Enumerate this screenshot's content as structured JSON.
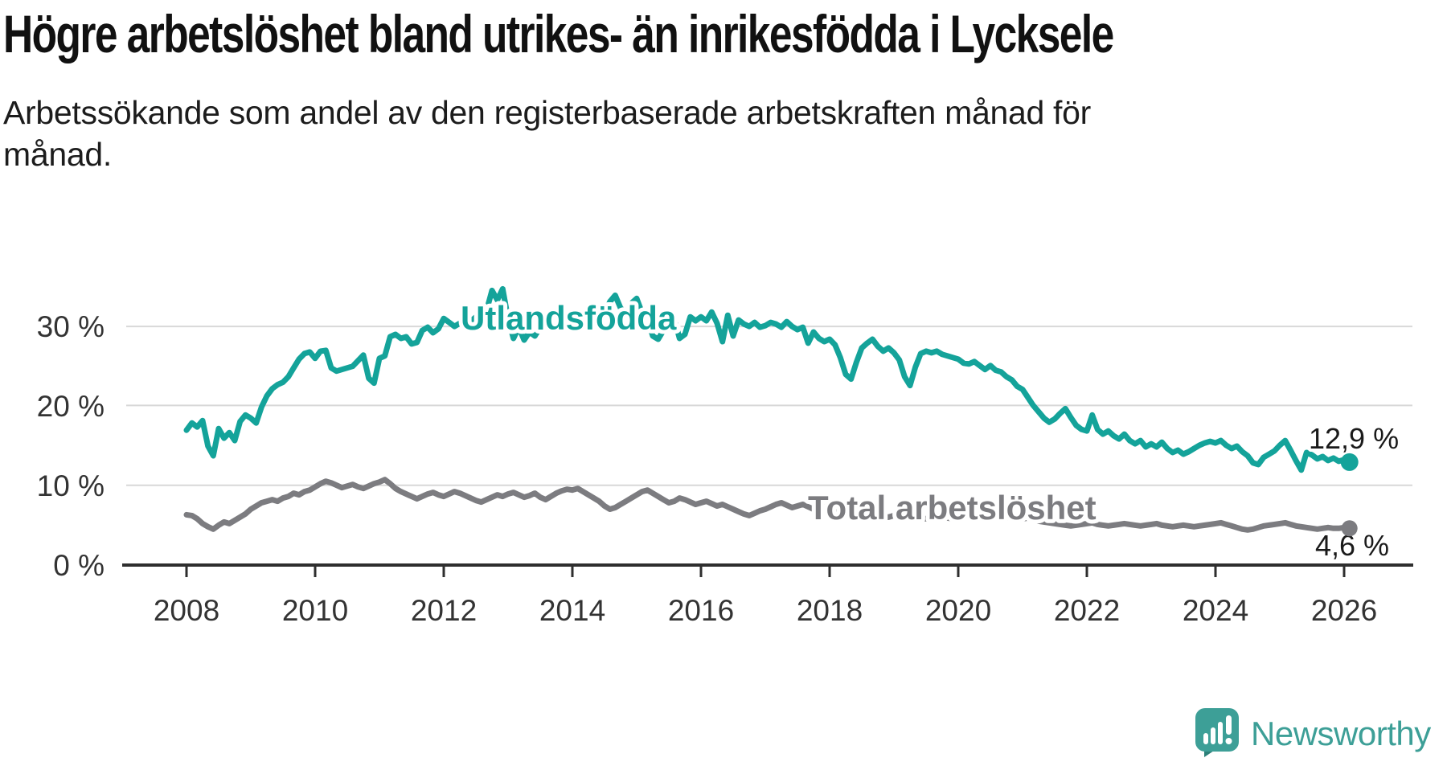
{
  "header": {
    "title": "Högre arbetslöshet bland utrikes- än inrikesfödda i Lycksele",
    "subtitle_line1": "Arbetssökande som andel av den registerbaserade arbetskraften månad för",
    "subtitle_line2": "månad."
  },
  "logo": {
    "name": "Newsworthy",
    "color": "#3d9f97",
    "icon": "speech-bubble-bar-chart"
  },
  "colors": {
    "accent_teal": "#14a39a",
    "gray": "#7c7c80",
    "grid": "#d8d8d8",
    "axis": "#2e2e2e",
    "text": "#1a1a1a"
  },
  "chart_data": {
    "type": "line",
    "title": "Högre arbetslöshet bland utrikes- än inrikesfödda i Lycksele",
    "subtitle": "Arbetssökande som andel av den registerbaserade arbetskraften månad för månad.",
    "x_unit": "month",
    "x_start": "2008-01",
    "x_end": "2026-02",
    "x_tick_labels": [
      "2008",
      "2010",
      "2012",
      "2014",
      "2016",
      "2018",
      "2020",
      "2022",
      "2024",
      "2026"
    ],
    "y_tick_labels": [
      "0 %",
      "10 %",
      "20 %",
      "30 %"
    ],
    "ylim": [
      0,
      36
    ],
    "grid": "horizontal",
    "legend": "inline-labels",
    "series": [
      {
        "name": "Utlandsfödda",
        "color": "#14a39a",
        "end_label": "12,9 %",
        "end_value": 12.9,
        "values": [
          16.9,
          17.8,
          17.3,
          18.1,
          14.9,
          13.7,
          17.1,
          15.9,
          16.6,
          15.6,
          18.0,
          18.8,
          18.4,
          17.8,
          19.8,
          21.2,
          22.1,
          22.6,
          22.9,
          23.6,
          24.7,
          25.8,
          26.5,
          26.7,
          25.9,
          26.8,
          26.9,
          24.7,
          24.3,
          24.5,
          24.7,
          24.9,
          25.6,
          26.3,
          23.4,
          22.8,
          25.9,
          26.2,
          28.6,
          28.9,
          28.4,
          28.6,
          27.7,
          27.9,
          29.4,
          29.8,
          29.1,
          29.6,
          30.9,
          30.4,
          29.9,
          30.3,
          30.0,
          30.5,
          31.1,
          30.4,
          31.9,
          34.4,
          33.2,
          34.6,
          30.9,
          28.4,
          29.8,
          28.2,
          29.2,
          28.7,
          29.8,
          30.4,
          29.8,
          30.2,
          29.6,
          30.1,
          30.4,
          30.9,
          31.3,
          30.5,
          31.1,
          30.7,
          31.5,
          33.0,
          33.8,
          32.2,
          31.6,
          32.8,
          33.4,
          31.6,
          30.9,
          28.7,
          28.3,
          29.4,
          30.5,
          30.9,
          28.4,
          28.9,
          31.1,
          30.6,
          31.1,
          30.6,
          31.7,
          30.3,
          28.0,
          31.3,
          28.7,
          30.7,
          30.2,
          29.9,
          30.4,
          29.8,
          30.0,
          30.4,
          30.2,
          29.8,
          30.5,
          29.9,
          29.5,
          29.8,
          27.8,
          29.2,
          28.4,
          28.0,
          28.3,
          27.6,
          26.0,
          23.9,
          23.3,
          25.4,
          27.2,
          27.8,
          28.3,
          27.4,
          26.8,
          27.2,
          26.6,
          25.7,
          23.6,
          22.5,
          24.8,
          26.5,
          26.8,
          26.6,
          26.8,
          26.4,
          26.2,
          26.0,
          25.8,
          25.3,
          25.2,
          25.5,
          25.0,
          24.5,
          25.0,
          24.4,
          24.2,
          23.6,
          23.2,
          22.4,
          22.0,
          21.0,
          20.0,
          19.2,
          18.4,
          17.9,
          18.3,
          19.0,
          19.6,
          18.5,
          17.5,
          17.0,
          16.8,
          18.8,
          17.0,
          16.4,
          16.8,
          16.2,
          15.8,
          16.4,
          15.6,
          15.2,
          15.6,
          14.8,
          15.2,
          14.8,
          15.4,
          14.6,
          14.1,
          14.4,
          13.9,
          14.2,
          14.6,
          15.0,
          15.3,
          15.5,
          15.3,
          15.6,
          15.0,
          14.6,
          14.9,
          14.2,
          13.7,
          12.8,
          12.6,
          13.5,
          13.9,
          14.3,
          15.0,
          15.6,
          14.4,
          13.1,
          11.9,
          14.1,
          13.8,
          13.3,
          13.6,
          13.1,
          13.4,
          13.0,
          13.2,
          12.9
        ]
      },
      {
        "name": "Total arbetslöshet",
        "color": "#7c7c80",
        "end_label": "4,6 %",
        "end_value": 4.6,
        "values": [
          6.3,
          6.2,
          5.8,
          5.2,
          4.8,
          4.5,
          5.0,
          5.4,
          5.2,
          5.6,
          6.0,
          6.4,
          7.0,
          7.4,
          7.8,
          8.0,
          8.2,
          8.0,
          8.4,
          8.6,
          9.0,
          8.8,
          9.2,
          9.4,
          9.8,
          10.2,
          10.5,
          10.3,
          10.0,
          9.7,
          9.9,
          10.1,
          9.8,
          9.6,
          9.9,
          10.2,
          10.4,
          10.7,
          10.2,
          9.6,
          9.2,
          8.9,
          8.6,
          8.3,
          8.6,
          8.9,
          9.1,
          8.8,
          8.6,
          8.9,
          9.2,
          9.0,
          8.7,
          8.4,
          8.1,
          7.9,
          8.2,
          8.5,
          8.8,
          8.6,
          8.9,
          9.1,
          8.8,
          8.5,
          8.7,
          9.0,
          8.5,
          8.2,
          8.6,
          9.0,
          9.3,
          9.5,
          9.4,
          9.6,
          9.2,
          8.8,
          8.4,
          8.0,
          7.4,
          7.0,
          7.2,
          7.6,
          8.0,
          8.4,
          8.8,
          9.2,
          9.4,
          9.0,
          8.6,
          8.2,
          7.8,
          8.0,
          8.4,
          8.2,
          7.9,
          7.6,
          7.8,
          8.0,
          7.7,
          7.4,
          7.6,
          7.3,
          7.0,
          6.7,
          6.4,
          6.2,
          6.5,
          6.8,
          7.0,
          7.3,
          7.6,
          7.8,
          7.5,
          7.2,
          7.4,
          7.6,
          7.3,
          7.0,
          7.2,
          7.4,
          7.2,
          7.0,
          6.8,
          6.6,
          6.4,
          6.2,
          6.4,
          6.6,
          6.5,
          6.3,
          6.1,
          6.0,
          6.2,
          6.4,
          6.3,
          6.1,
          6.0,
          5.9,
          5.8,
          6.0,
          6.1,
          6.0,
          5.9,
          5.8,
          6.0,
          6.2,
          6.8,
          7.2,
          7.0,
          6.8,
          6.6,
          6.4,
          6.2,
          6.0,
          5.8,
          5.6,
          5.8,
          5.9,
          5.7,
          5.5,
          5.4,
          5.3,
          5.2,
          5.1,
          5.0,
          4.9,
          5.0,
          5.1,
          5.2,
          5.3,
          5.1,
          5.0,
          4.9,
          5.0,
          5.1,
          5.2,
          5.1,
          5.0,
          4.9,
          5.0,
          5.1,
          5.2,
          5.0,
          4.9,
          4.8,
          4.9,
          5.0,
          4.9,
          4.8,
          4.9,
          5.0,
          5.1,
          5.2,
          5.3,
          5.1,
          4.9,
          4.7,
          4.5,
          4.4,
          4.5,
          4.7,
          4.9,
          5.0,
          5.1,
          5.2,
          5.3,
          5.1,
          4.9,
          4.8,
          4.7,
          4.6,
          4.5,
          4.6,
          4.7,
          4.6,
          4.6,
          4.7,
          4.6
        ]
      }
    ]
  }
}
